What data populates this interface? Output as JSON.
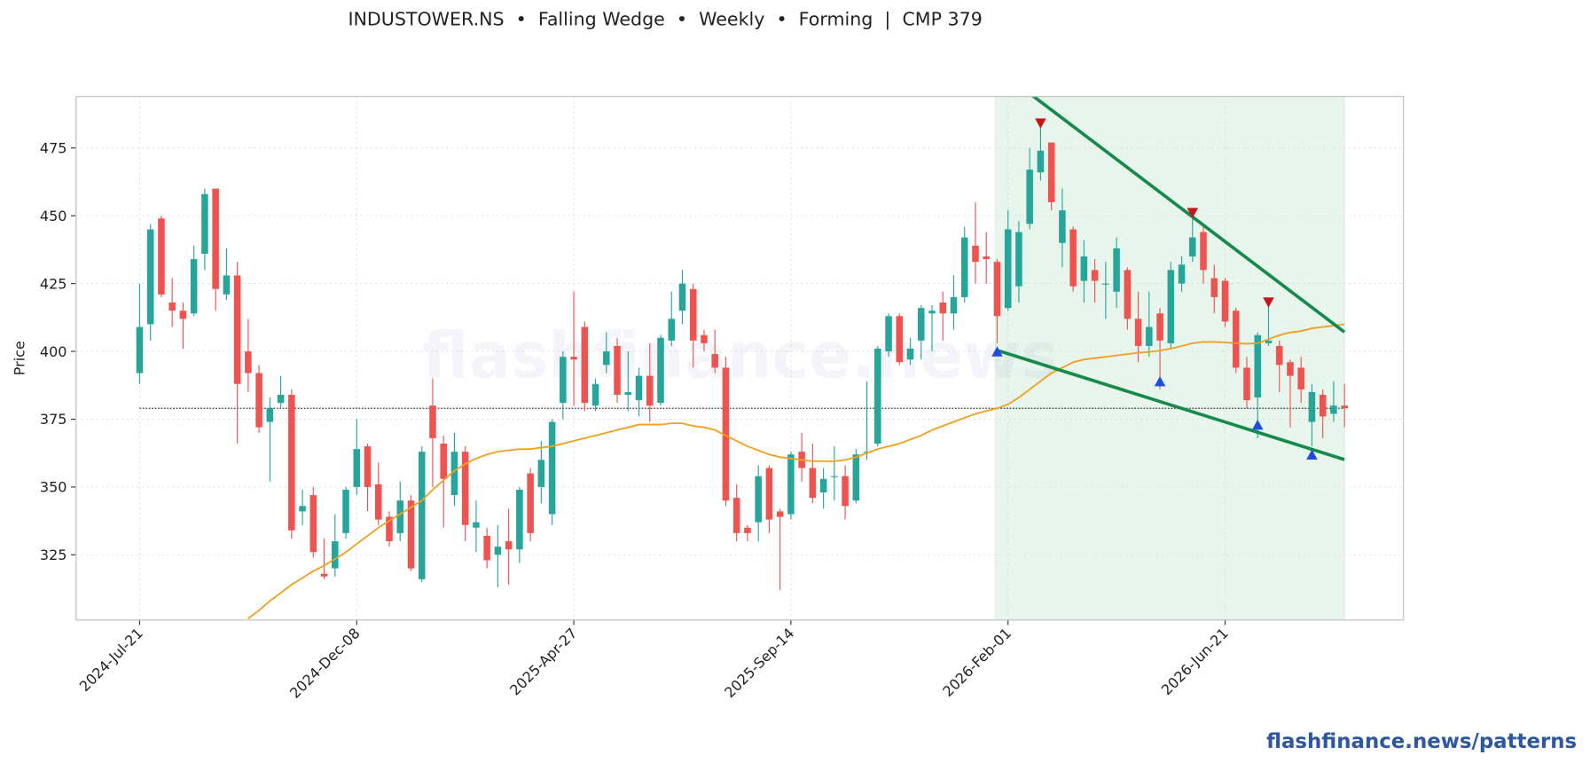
{
  "chart_data": {
    "type": "candlestick",
    "title": "INDUSTOWER.NS  •  Falling Wedge  •  Weekly  •  Forming  |  CMP 379",
    "ylabel": "Price",
    "watermark": "flashfinance.news",
    "footer": "flashfinance.news/patterns",
    "x": [
      "2024-07-21",
      "2024-07-28",
      "2024-08-04",
      "2024-08-11",
      "2024-08-18",
      "2024-08-25",
      "2024-09-01",
      "2024-09-08",
      "2024-09-15",
      "2024-09-22",
      "2024-09-29",
      "2024-10-06",
      "2024-10-13",
      "2024-10-20",
      "2024-10-27",
      "2024-11-03",
      "2024-11-10",
      "2024-11-17",
      "2024-11-24",
      "2024-12-01",
      "2024-12-08",
      "2024-12-15",
      "2024-12-22",
      "2024-12-29",
      "2025-01-05",
      "2025-01-12",
      "2025-01-19",
      "2025-01-26",
      "2025-02-02",
      "2025-02-09",
      "2025-02-16",
      "2025-02-23",
      "2025-03-02",
      "2025-03-09",
      "2025-03-16",
      "2025-03-23",
      "2025-03-30",
      "2025-04-06",
      "2025-04-13",
      "2025-04-20",
      "2025-04-27",
      "2025-05-04",
      "2025-05-11",
      "2025-05-18",
      "2025-05-25",
      "2025-06-01",
      "2025-06-08",
      "2025-06-15",
      "2025-06-22",
      "2025-06-29",
      "2025-07-06",
      "2025-07-13",
      "2025-07-20",
      "2025-07-27",
      "2025-08-03",
      "2025-08-10",
      "2025-08-17",
      "2025-08-24",
      "2025-08-31",
      "2025-09-07",
      "2025-09-14",
      "2025-09-21",
      "2025-09-28",
      "2025-10-05",
      "2025-10-12",
      "2025-10-19",
      "2025-10-26",
      "2025-11-02",
      "2025-11-09",
      "2025-11-16",
      "2025-11-23",
      "2025-11-30",
      "2025-12-07",
      "2025-12-14",
      "2025-12-21",
      "2025-12-28",
      "2026-01-04",
      "2026-01-11",
      "2026-01-18",
      "2026-01-25",
      "2026-02-01",
      "2026-02-08",
      "2026-02-15",
      "2026-02-22",
      "2026-03-01",
      "2026-03-08",
      "2026-03-15",
      "2026-03-22",
      "2026-03-29",
      "2026-04-05",
      "2026-04-12",
      "2026-04-19",
      "2026-04-26",
      "2026-05-03",
      "2026-05-10",
      "2026-05-17",
      "2026-05-24",
      "2026-05-31",
      "2026-06-07",
      "2026-06-14",
      "2026-06-21",
      "2026-06-28",
      "2026-07-05",
      "2026-07-12",
      "2026-07-19",
      "2026-07-26",
      "2026-08-02",
      "2026-08-09",
      "2026-08-16",
      "2026-08-23",
      "2026-08-30",
      "2026-09-06"
    ],
    "open": [
      392,
      410,
      449,
      418,
      415,
      414,
      436,
      460,
      421,
      428,
      400,
      392,
      374,
      381,
      384,
      341,
      347,
      318,
      320,
      333,
      350,
      365,
      351,
      339,
      333,
      345,
      316,
      380,
      366,
      347,
      363,
      335,
      332,
      325,
      330,
      327,
      355,
      350,
      340,
      381,
      398,
      409,
      380,
      395,
      402,
      384,
      382,
      391,
      381,
      404,
      415,
      423,
      406,
      399,
      394,
      346,
      335,
      337,
      357,
      341,
      340,
      363,
      357,
      348,
      354,
      354,
      345,
      363,
      366,
      400,
      413,
      397,
      404,
      414,
      418,
      414,
      420,
      439,
      435,
      433,
      416,
      424,
      447,
      466,
      477,
      440,
      445,
      426,
      430,
      425,
      422,
      430,
      412,
      402,
      414,
      403,
      425,
      435,
      444,
      427,
      426,
      415,
      394,
      383,
      403,
      402,
      396,
      394,
      374,
      384,
      377,
      380
    ],
    "high": [
      425,
      447,
      450,
      427,
      418,
      439,
      460,
      460,
      438,
      433,
      412,
      395,
      383,
      391,
      386,
      349,
      350,
      331,
      340,
      350,
      375,
      366,
      359,
      341,
      352,
      347,
      365,
      390,
      369,
      370,
      365,
      345,
      335,
      336,
      342,
      350,
      357,
      367,
      375,
      400,
      422,
      411,
      390,
      407,
      405,
      400,
      394,
      403,
      406,
      422,
      430,
      425,
      408,
      408,
      398,
      351,
      336,
      358,
      358,
      342,
      363,
      370,
      366,
      357,
      365,
      358,
      364,
      389,
      402,
      414,
      414,
      405,
      417,
      417,
      422,
      428,
      446,
      455,
      444,
      434,
      452,
      448,
      475,
      484,
      477,
      460,
      446,
      441,
      434,
      433,
      442,
      431,
      422,
      422,
      416,
      433,
      435,
      451,
      446,
      432,
      427,
      416,
      398,
      407,
      417,
      404,
      397,
      398,
      388,
      386,
      389,
      388
    ],
    "low": [
      388,
      404,
      420,
      409,
      401,
      413,
      430,
      415,
      419,
      366,
      385,
      370,
      352,
      379,
      331,
      336,
      324,
      316,
      317,
      331,
      347,
      341,
      336,
      328,
      330,
      319,
      315,
      350,
      335,
      343,
      330,
      326,
      320,
      313,
      314,
      322,
      330,
      344,
      336,
      375,
      380,
      378,
      378,
      392,
      381,
      378,
      376,
      374,
      380,
      402,
      410,
      394,
      400,
      392,
      343,
      330,
      330,
      330,
      333,
      312,
      338,
      352,
      344,
      342,
      345,
      338,
      344,
      360,
      365,
      398,
      395,
      395,
      397,
      400,
      404,
      408,
      418,
      425,
      425,
      403,
      415,
      418,
      445,
      463,
      452,
      431,
      422,
      418,
      418,
      412,
      416,
      408,
      396,
      398,
      386,
      401,
      422,
      433,
      425,
      414,
      409,
      392,
      379,
      368,
      402,
      385,
      372,
      381,
      365,
      368,
      374,
      372
    ],
    "close": [
      409,
      445,
      421,
      415,
      412,
      434,
      458,
      423,
      428,
      388,
      392,
      372,
      379,
      384,
      334,
      343,
      326,
      317,
      330,
      349,
      364,
      350,
      338,
      330,
      345,
      320,
      363,
      368,
      353,
      363,
      336,
      337,
      323,
      328,
      327,
      349,
      333,
      360,
      374,
      398,
      397,
      381,
      388,
      400,
      384,
      385,
      391,
      380,
      405,
      412,
      425,
      404,
      403,
      394,
      345,
      333,
      333,
      354,
      338,
      339,
      362,
      357,
      346,
      353,
      354,
      343,
      362,
      363,
      401,
      413,
      396,
      401,
      416,
      415,
      414,
      420,
      442,
      433,
      434,
      413,
      445,
      444,
      467,
      474,
      455,
      452,
      424,
      435,
      426,
      425,
      438,
      412,
      402,
      409,
      404,
      430,
      432,
      442,
      430,
      420,
      411,
      394,
      382,
      406,
      404,
      395,
      391,
      386,
      385,
      376,
      380,
      379
    ],
    "ma": [
      null,
      null,
      null,
      null,
      null,
      null,
      null,
      null,
      null,
      null,
      301.5,
      304.5,
      308,
      311,
      314,
      316.5,
      319,
      321,
      323.5,
      326,
      329,
      332,
      335,
      337.5,
      340,
      342.5,
      345,
      349,
      352.5,
      356,
      358.5,
      360.5,
      362,
      363,
      363.5,
      364,
      364,
      364.5,
      365,
      366,
      367,
      368,
      369,
      370,
      371,
      372,
      373,
      373,
      373,
      373.5,
      373.5,
      372.5,
      372,
      371,
      369,
      367,
      365,
      363.5,
      362,
      361,
      360.5,
      360,
      359.5,
      359.5,
      359.5,
      360,
      361,
      362.5,
      364,
      365,
      366,
      367.5,
      369,
      371,
      372.5,
      374,
      375.5,
      377,
      378,
      379,
      380.5,
      383,
      386,
      389,
      392,
      394,
      396,
      397,
      397.5,
      398,
      398.5,
      399,
      399.5,
      399.8,
      400.3,
      401,
      402,
      403,
      403.5,
      403.5,
      403.3,
      403,
      402.8,
      403,
      404.5,
      406,
      407,
      407.5,
      408.5,
      409,
      409.5,
      410
    ],
    "up_color": "#26a69a",
    "down_color": "#ef5350",
    "ma_color": "#f0a020",
    "cmp": 379,
    "pattern_start": "2026-01-24",
    "pattern_end": "2026-09-06",
    "pattern_color": "#e8f5ec",
    "trendlines": {
      "color": "#158a4a",
      "upper": [
        [
          "2026-01-25",
          504.2
        ],
        [
          "2026-09-06",
          407.1
        ]
      ],
      "lower": [
        [
          "2026-01-25",
          400.4
        ],
        [
          "2026-09-06",
          360.1
        ]
      ]
    },
    "peaks": {
      "color": "#c8161d",
      "points": [
        [
          "2026-02-22",
          484
        ],
        [
          "2026-05-31",
          451
        ],
        [
          "2026-07-19",
          418
        ]
      ]
    },
    "troughs": {
      "color": "#1f4fd8",
      "points": [
        [
          "2026-01-25",
          400
        ],
        [
          "2026-05-10",
          389
        ],
        [
          "2026-07-12",
          373
        ],
        [
          "2026-08-16",
          362
        ]
      ]
    },
    "xlim": [
      "2024-06-10",
      "2026-10-14"
    ],
    "xticks": [
      {
        "value": "2024-07-21",
        "label": "2024-Jul-21"
      },
      {
        "value": "2024-12-08",
        "label": "2024-Dec-08"
      },
      {
        "value": "2025-04-27",
        "label": "2025-Apr-27"
      },
      {
        "value": "2025-09-14",
        "label": "2025-Sep-14"
      },
      {
        "value": "2026-02-01",
        "label": "2026-Feb-01"
      },
      {
        "value": "2026-06-21",
        "label": "2026-Jun-21"
      }
    ],
    "ylim": [
      301,
      494
    ],
    "yticks": [
      325,
      350,
      375,
      400,
      425,
      450,
      475
    ],
    "grid": true
  }
}
